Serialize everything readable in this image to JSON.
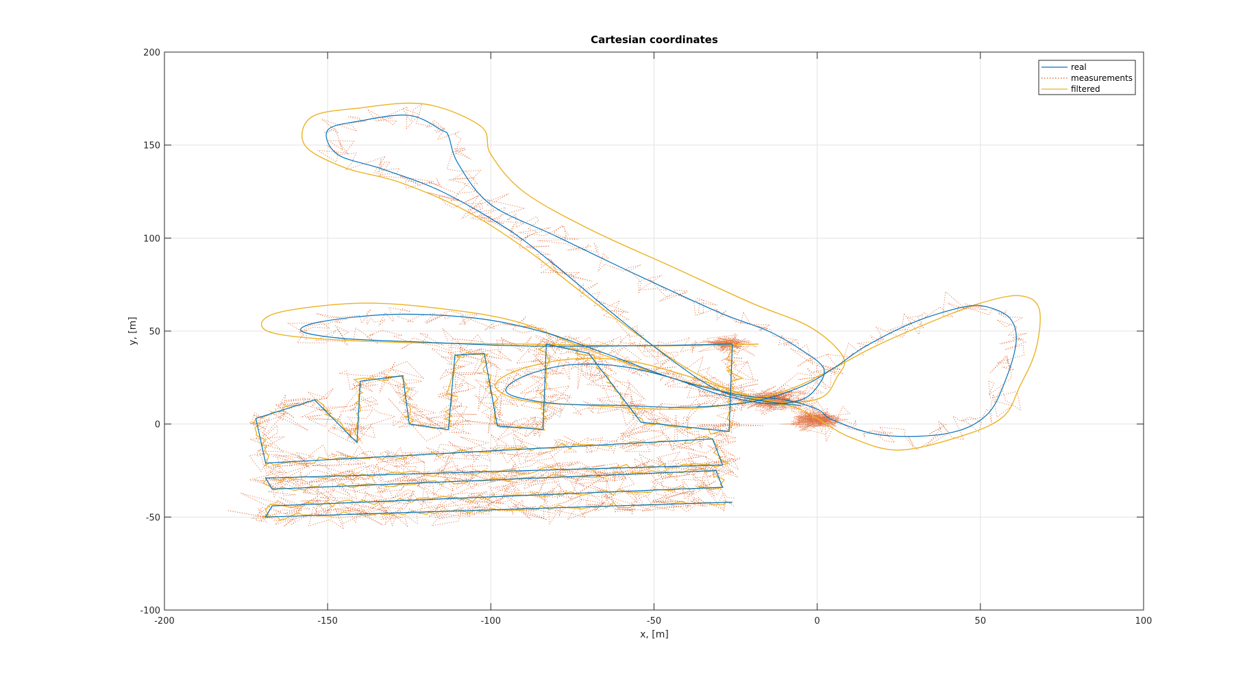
{
  "chart_data": {
    "type": "line",
    "title": "Cartesian coordinates",
    "xlabel": "x, [m]",
    "ylabel": "y, [m]",
    "xlim": [
      -200,
      100
    ],
    "ylim": [
      -100,
      200
    ],
    "xticks": [
      -200,
      -150,
      -100,
      -50,
      0,
      50,
      100
    ],
    "yticks": [
      -100,
      -50,
      0,
      50,
      100,
      150,
      200
    ],
    "xtick_labels": [
      "-200",
      "-150",
      "-100",
      "-50",
      "0",
      "50",
      "100"
    ],
    "ytick_labels": [
      "-100",
      "-50",
      "0",
      "50",
      "100",
      "150",
      "200"
    ],
    "grid": true,
    "legend_position": "top-right",
    "series": [
      {
        "name": "real",
        "color": "#0072BD",
        "style": "solid",
        "points": [
          [
            -26,
            43
          ],
          [
            -60,
            42
          ],
          [
            -90,
            42
          ],
          [
            -120,
            44
          ],
          [
            -145,
            46
          ],
          [
            -158,
            50
          ],
          [
            -152,
            55
          ],
          [
            -130,
            59
          ],
          [
            -105,
            57
          ],
          [
            -85,
            50
          ],
          [
            -65,
            38
          ],
          [
            -45,
            25
          ],
          [
            -25,
            16
          ],
          [
            -10,
            13
          ],
          [
            0,
            8
          ],
          [
            5,
            2
          ],
          [
            20,
            -6
          ],
          [
            40,
            -5
          ],
          [
            52,
            5
          ],
          [
            58,
            25
          ],
          [
            61,
            45
          ],
          [
            59,
            57
          ],
          [
            52,
            63
          ],
          [
            45,
            63
          ],
          [
            30,
            55
          ],
          [
            15,
            42
          ],
          [
            5,
            30
          ],
          [
            -5,
            20
          ],
          [
            -20,
            12
          ],
          [
            -40,
            9
          ],
          [
            -60,
            10
          ],
          [
            -80,
            11
          ],
          [
            -93,
            15
          ],
          [
            -95,
            20
          ],
          [
            -88,
            27
          ],
          [
            -75,
            32
          ],
          [
            -60,
            31
          ],
          [
            -45,
            25
          ],
          [
            -30,
            16
          ],
          [
            -15,
            11
          ],
          [
            -5,
            13
          ],
          [
            0,
            20
          ],
          [
            2,
            30
          ],
          [
            -5,
            40
          ],
          [
            -15,
            50
          ],
          [
            -30,
            60
          ],
          [
            -55,
            80
          ],
          [
            -80,
            101
          ],
          [
            -100,
            118
          ],
          [
            -110,
            140
          ],
          [
            -113,
            155
          ],
          [
            -115,
            158
          ],
          [
            -125,
            166
          ],
          [
            -140,
            163
          ],
          [
            -150,
            158
          ],
          [
            -147,
            145
          ],
          [
            -133,
            137
          ],
          [
            -115,
            125
          ],
          [
            -95,
            105
          ],
          [
            -80,
            85
          ],
          [
            -63,
            60
          ],
          [
            -45,
            35
          ],
          [
            -30,
            18
          ],
          [
            -15,
            12
          ],
          [
            -5,
            10
          ]
        ]
      },
      {
        "name": "filtered",
        "color": "#EDB120",
        "style": "solid",
        "points": [
          [
            -18,
            43
          ],
          [
            -50,
            42
          ],
          [
            -90,
            43
          ],
          [
            -130,
            44
          ],
          [
            -160,
            47
          ],
          [
            -170,
            52
          ],
          [
            -165,
            60
          ],
          [
            -140,
            65
          ],
          [
            -115,
            62
          ],
          [
            -92,
            55
          ],
          [
            -70,
            40
          ],
          [
            -45,
            25
          ],
          [
            -22,
            15
          ],
          [
            -7,
            9
          ],
          [
            0,
            3
          ],
          [
            10,
            -7
          ],
          [
            25,
            -14
          ],
          [
            45,
            -6
          ],
          [
            57,
            4
          ],
          [
            62,
            20
          ],
          [
            67,
            40
          ],
          [
            68,
            62
          ],
          [
            62,
            69
          ],
          [
            50,
            65
          ],
          [
            35,
            55
          ],
          [
            18,
            42
          ],
          [
            5,
            30
          ],
          [
            -8,
            19
          ],
          [
            -25,
            11
          ],
          [
            -45,
            8
          ],
          [
            -70,
            10
          ],
          [
            -88,
            12
          ],
          [
            -97,
            17
          ],
          [
            -98,
            23
          ],
          [
            -90,
            30
          ],
          [
            -75,
            35
          ],
          [
            -58,
            34
          ],
          [
            -42,
            27
          ],
          [
            -26,
            18
          ],
          [
            -12,
            12
          ],
          [
            1,
            14
          ],
          [
            6,
            25
          ],
          [
            8,
            36
          ],
          [
            -2,
            52
          ],
          [
            -20,
            65
          ],
          [
            -45,
            85
          ],
          [
            -70,
            105
          ],
          [
            -90,
            125
          ],
          [
            -100,
            145
          ],
          [
            -103,
            160
          ],
          [
            -120,
            172
          ],
          [
            -140,
            170
          ],
          [
            -155,
            165
          ],
          [
            -157,
            150
          ],
          [
            -145,
            138
          ],
          [
            -128,
            130
          ],
          [
            -108,
            115
          ],
          [
            -90,
            95
          ],
          [
            -73,
            72
          ],
          [
            -55,
            48
          ],
          [
            -38,
            28
          ],
          [
            -22,
            15
          ],
          [
            -10,
            10
          ]
        ]
      }
    ],
    "segment_series": [
      {
        "name": "real",
        "color": "#0072BD",
        "points": [
          [
            -26,
            43
          ],
          [
            -27,
            -4
          ],
          [
            -54,
            1
          ],
          [
            -70,
            38
          ],
          [
            -83,
            43
          ],
          [
            -84,
            -3
          ],
          [
            -98,
            -1
          ],
          [
            -102,
            38
          ],
          [
            -111,
            37
          ],
          [
            -113,
            -3
          ],
          [
            -125,
            0
          ],
          [
            -127,
            26
          ],
          [
            -140,
            23
          ],
          [
            -141,
            -10
          ],
          [
            -154,
            13
          ],
          [
            -172,
            3
          ],
          [
            -169,
            -21
          ],
          [
            -32,
            -8
          ],
          [
            -29,
            -22
          ],
          [
            -169,
            -29
          ],
          [
            -167,
            -35
          ],
          [
            -31,
            -25
          ],
          [
            -29,
            -34
          ],
          [
            -167,
            -44
          ],
          [
            -169,
            -50
          ],
          [
            -26,
            -42
          ]
        ]
      }
    ],
    "legend": [
      "real",
      "measurements",
      "filtered"
    ],
    "measurements": {
      "name": "measurements",
      "color": "#D95319",
      "style": "dotted",
      "note_count": 3200
    }
  }
}
